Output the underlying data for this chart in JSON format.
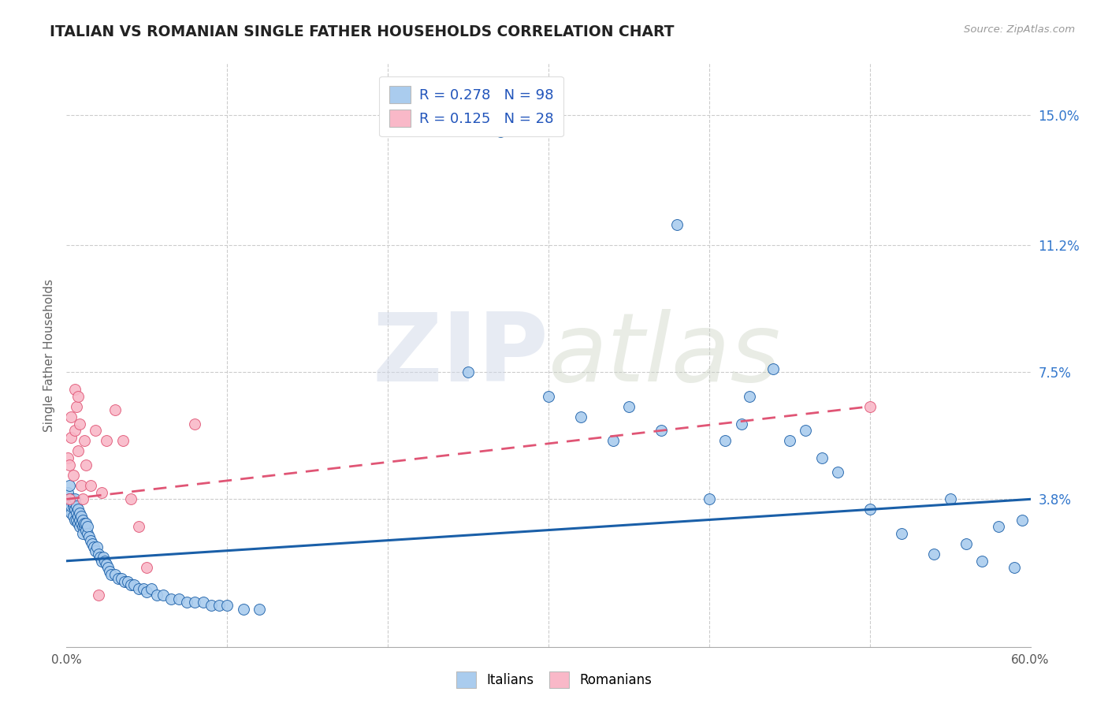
{
  "title": "ITALIAN VS ROMANIAN SINGLE FATHER HOUSEHOLDS CORRELATION CHART",
  "source": "Source: ZipAtlas.com",
  "ylabel": "Single Father Households",
  "ytick_labels": [
    "3.8%",
    "7.5%",
    "11.2%",
    "15.0%"
  ],
  "ytick_values": [
    0.038,
    0.075,
    0.112,
    0.15
  ],
  "xlim": [
    0.0,
    0.6
  ],
  "ylim": [
    -0.005,
    0.165
  ],
  "R_italian": 0.278,
  "N_italian": 98,
  "R_romanian": 0.125,
  "N_romanian": 28,
  "color_italian": "#aaccee",
  "color_romanian": "#f9b8c8",
  "line_color_italian": "#1a5fa8",
  "line_color_romanian": "#e05575",
  "watermark_zip": "ZIP",
  "watermark_atlas": "atlas",
  "title_color": "#222222",
  "axis_label_color": "#666666",
  "tick_color_right": "#3377cc",
  "background_color": "#ffffff",
  "grid_color": "#cccccc",
  "it_line_x0": 0.0,
  "it_line_x1": 0.6,
  "it_line_y0": 0.02,
  "it_line_y1": 0.038,
  "ro_line_x0": 0.0,
  "ro_line_x1": 0.5,
  "ro_line_y0": 0.038,
  "ro_line_y1": 0.065,
  "italian_x": [
    0.001,
    0.001,
    0.002,
    0.002,
    0.002,
    0.003,
    0.003,
    0.003,
    0.004,
    0.004,
    0.004,
    0.005,
    0.005,
    0.005,
    0.006,
    0.006,
    0.006,
    0.007,
    0.007,
    0.007,
    0.008,
    0.008,
    0.008,
    0.009,
    0.009,
    0.01,
    0.01,
    0.01,
    0.011,
    0.011,
    0.012,
    0.012,
    0.013,
    0.013,
    0.014,
    0.015,
    0.016,
    0.017,
    0.018,
    0.019,
    0.02,
    0.021,
    0.022,
    0.023,
    0.024,
    0.025,
    0.026,
    0.027,
    0.028,
    0.03,
    0.032,
    0.034,
    0.036,
    0.038,
    0.04,
    0.042,
    0.045,
    0.048,
    0.05,
    0.053,
    0.056,
    0.06,
    0.065,
    0.07,
    0.075,
    0.08,
    0.085,
    0.09,
    0.095,
    0.1,
    0.11,
    0.12,
    0.25,
    0.27,
    0.3,
    0.32,
    0.34,
    0.35,
    0.37,
    0.38,
    0.4,
    0.42,
    0.44,
    0.45,
    0.46,
    0.47,
    0.48,
    0.5,
    0.52,
    0.54,
    0.55,
    0.56,
    0.57,
    0.58,
    0.59,
    0.595,
    0.425,
    0.41
  ],
  "italian_y": [
    0.04,
    0.036,
    0.042,
    0.038,
    0.035,
    0.038,
    0.034,
    0.036,
    0.036,
    0.033,
    0.037,
    0.035,
    0.032,
    0.038,
    0.034,
    0.032,
    0.036,
    0.033,
    0.031,
    0.035,
    0.032,
    0.03,
    0.034,
    0.031,
    0.033,
    0.03,
    0.032,
    0.028,
    0.03,
    0.031,
    0.029,
    0.031,
    0.028,
    0.03,
    0.027,
    0.026,
    0.025,
    0.024,
    0.023,
    0.024,
    0.022,
    0.021,
    0.02,
    0.021,
    0.02,
    0.019,
    0.018,
    0.017,
    0.016,
    0.016,
    0.015,
    0.015,
    0.014,
    0.014,
    0.013,
    0.013,
    0.012,
    0.012,
    0.011,
    0.012,
    0.01,
    0.01,
    0.009,
    0.009,
    0.008,
    0.008,
    0.008,
    0.007,
    0.007,
    0.007,
    0.006,
    0.006,
    0.075,
    0.145,
    0.068,
    0.062,
    0.055,
    0.065,
    0.058,
    0.118,
    0.038,
    0.06,
    0.076,
    0.055,
    0.058,
    0.05,
    0.046,
    0.035,
    0.028,
    0.022,
    0.038,
    0.025,
    0.02,
    0.03,
    0.018,
    0.032,
    0.068,
    0.055
  ],
  "romanian_x": [
    0.001,
    0.002,
    0.002,
    0.003,
    0.003,
    0.004,
    0.005,
    0.005,
    0.006,
    0.007,
    0.007,
    0.008,
    0.009,
    0.01,
    0.011,
    0.012,
    0.015,
    0.018,
    0.02,
    0.022,
    0.025,
    0.03,
    0.035,
    0.04,
    0.045,
    0.05,
    0.08,
    0.5
  ],
  "romanian_y": [
    0.05,
    0.038,
    0.048,
    0.062,
    0.056,
    0.045,
    0.07,
    0.058,
    0.065,
    0.068,
    0.052,
    0.06,
    0.042,
    0.038,
    0.055,
    0.048,
    0.042,
    0.058,
    0.01,
    0.04,
    0.055,
    0.064,
    0.055,
    0.038,
    0.03,
    0.018,
    0.06,
    0.065
  ]
}
